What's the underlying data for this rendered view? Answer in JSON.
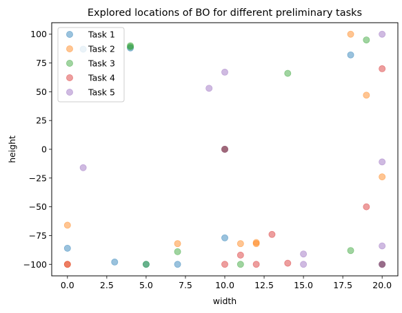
{
  "chart_data": {
    "type": "scatter",
    "title": "Explored locations of BO for different preliminary tasks",
    "xlabel": "width",
    "ylabel": "height",
    "xlim": [
      -1,
      21
    ],
    "ylim": [
      -110,
      110
    ],
    "xticks": [
      0.0,
      2.5,
      5.0,
      7.5,
      10.0,
      12.5,
      15.0,
      17.5,
      20.0
    ],
    "xtick_labels": [
      "0.0",
      "2.5",
      "5.0",
      "7.5",
      "10.0",
      "12.5",
      "15.0",
      "17.5",
      "20.0"
    ],
    "yticks": [
      100,
      75,
      50,
      25,
      0,
      -25,
      -50,
      -75,
      -100
    ],
    "ytick_labels": [
      "100",
      "75",
      "50",
      "25",
      "0",
      "−25",
      "−50",
      "−75",
      "−100"
    ],
    "grid": false,
    "legend_position": "top-left",
    "marker_opacity": 0.45,
    "series": [
      {
        "name": "Task 1",
        "color": "#1f77b4",
        "points": [
          [
            0,
            -86
          ],
          [
            1,
            87
          ],
          [
            3,
            -98
          ],
          [
            4,
            88
          ],
          [
            5,
            -100
          ],
          [
            7,
            -100
          ],
          [
            10,
            0
          ],
          [
            10,
            -77
          ],
          [
            18,
            82
          ],
          [
            20,
            -100
          ]
        ]
      },
      {
        "name": "Task 2",
        "color": "#ff7f0e",
        "points": [
          [
            0,
            -66
          ],
          [
            0,
            -100
          ],
          [
            7,
            -82
          ],
          [
            11,
            -82
          ],
          [
            12,
            -81
          ],
          [
            12,
            -82
          ],
          [
            18,
            100
          ],
          [
            19,
            47
          ],
          [
            20,
            -24
          ],
          [
            10,
            0
          ]
        ]
      },
      {
        "name": "Task 3",
        "color": "#2ca02c",
        "points": [
          [
            4,
            90
          ],
          [
            5,
            -100
          ],
          [
            7,
            -89
          ],
          [
            11,
            -100
          ],
          [
            14,
            66
          ],
          [
            18,
            -88
          ],
          [
            19,
            95
          ],
          [
            10,
            0
          ],
          [
            20,
            -100
          ],
          [
            4,
            89
          ]
        ]
      },
      {
        "name": "Task 4",
        "color": "#d62728",
        "points": [
          [
            0,
            -100
          ],
          [
            10,
            0
          ],
          [
            10,
            -100
          ],
          [
            11,
            -92
          ],
          [
            12,
            -100
          ],
          [
            13,
            -74
          ],
          [
            14,
            -99
          ],
          [
            19,
            -50
          ],
          [
            20,
            70
          ],
          [
            20,
            -100
          ]
        ]
      },
      {
        "name": "Task 5",
        "color": "#9467bd",
        "points": [
          [
            1,
            -16
          ],
          [
            9,
            53
          ],
          [
            10,
            67
          ],
          [
            10,
            0
          ],
          [
            15,
            -91
          ],
          [
            15,
            -100
          ],
          [
            20,
            100
          ],
          [
            20,
            -11
          ],
          [
            20,
            -84
          ],
          [
            20,
            -100
          ]
        ]
      }
    ]
  }
}
